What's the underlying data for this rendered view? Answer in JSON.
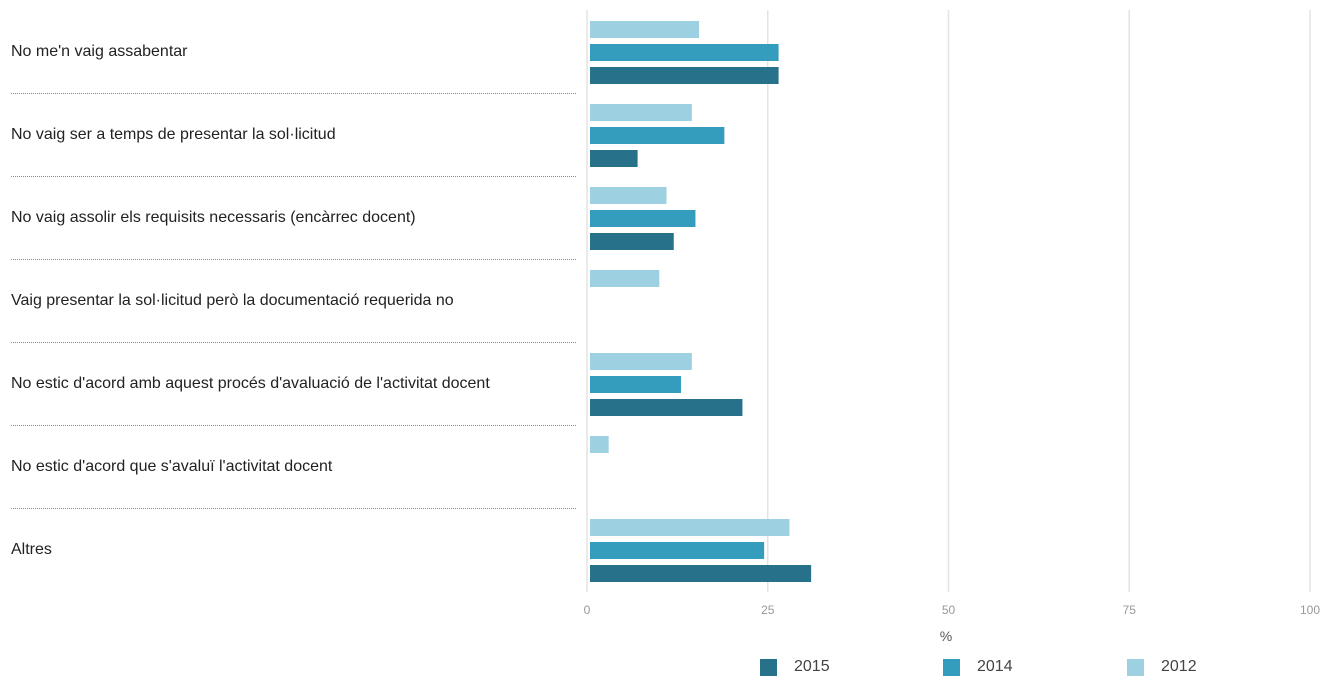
{
  "chart_data": {
    "type": "bar",
    "orientation": "horizontal",
    "categories": [
      "No me'n vaig assabentar",
      "No vaig ser a temps de presentar la sol·licitud",
      "No vaig assolir els requisits necessaris (encàrrec docent)",
      "Vaig presentar la sol·licitud però la documentació requerida no",
      "No estic d'acord amb aquest procés d'avaluació de l'activitat docent",
      "No estic d'acord que s'avaluï l'activitat docent",
      "Altres"
    ],
    "series": [
      {
        "name": "2012",
        "color": "#9dd1e1",
        "values": [
          15.5,
          14.5,
          11,
          10,
          14.5,
          3,
          28
        ]
      },
      {
        "name": "2014",
        "color": "#349dbe",
        "values": [
          26.5,
          19,
          15,
          null,
          13,
          null,
          24.5
        ]
      },
      {
        "name": "2015",
        "color": "#27718a",
        "values": [
          26.5,
          7,
          12,
          null,
          21.5,
          null,
          31
        ]
      }
    ],
    "xlabel": "%",
    "ylabel": "",
    "xlim": [
      0,
      100
    ],
    "xticks": [
      0,
      25,
      50,
      75,
      100
    ],
    "grid": true,
    "legend": {
      "position": "bottom",
      "order": [
        "2015",
        "2014",
        "2012"
      ]
    }
  }
}
